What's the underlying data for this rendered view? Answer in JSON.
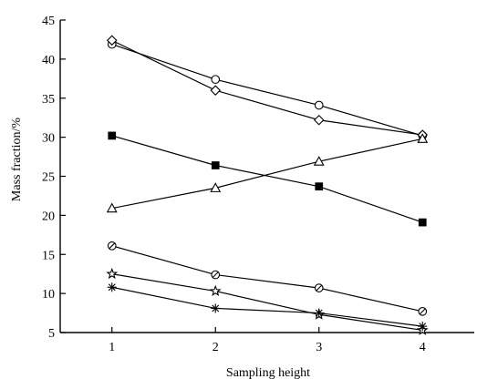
{
  "chart_data": {
    "type": "line",
    "xlabel": "Sampling height",
    "ylabel": "Mass fraction/%",
    "x": [
      1,
      2,
      3,
      4
    ],
    "xlim": [
      0.5,
      4.5
    ],
    "ylim": [
      5,
      45
    ],
    "yticks": [
      5,
      10,
      15,
      20,
      25,
      30,
      35,
      40,
      45
    ],
    "series": [
      {
        "marker": "circle",
        "values": [
          41.9,
          37.4,
          34.1,
          30.2
        ]
      },
      {
        "marker": "diamond",
        "values": [
          42.4,
          36.0,
          32.2,
          30.3
        ]
      },
      {
        "marker": "square",
        "values": [
          30.2,
          26.4,
          23.7,
          19.1
        ]
      },
      {
        "marker": "triangle",
        "values": [
          20.9,
          23.5,
          26.9,
          29.8
        ]
      },
      {
        "marker": "circle-slash",
        "values": [
          16.1,
          12.4,
          10.7,
          7.7
        ]
      },
      {
        "marker": "star",
        "values": [
          12.5,
          10.3,
          7.3,
          5.3
        ]
      },
      {
        "marker": "asterisk",
        "values": [
          10.8,
          8.1,
          7.5,
          5.8
        ]
      }
    ]
  }
}
